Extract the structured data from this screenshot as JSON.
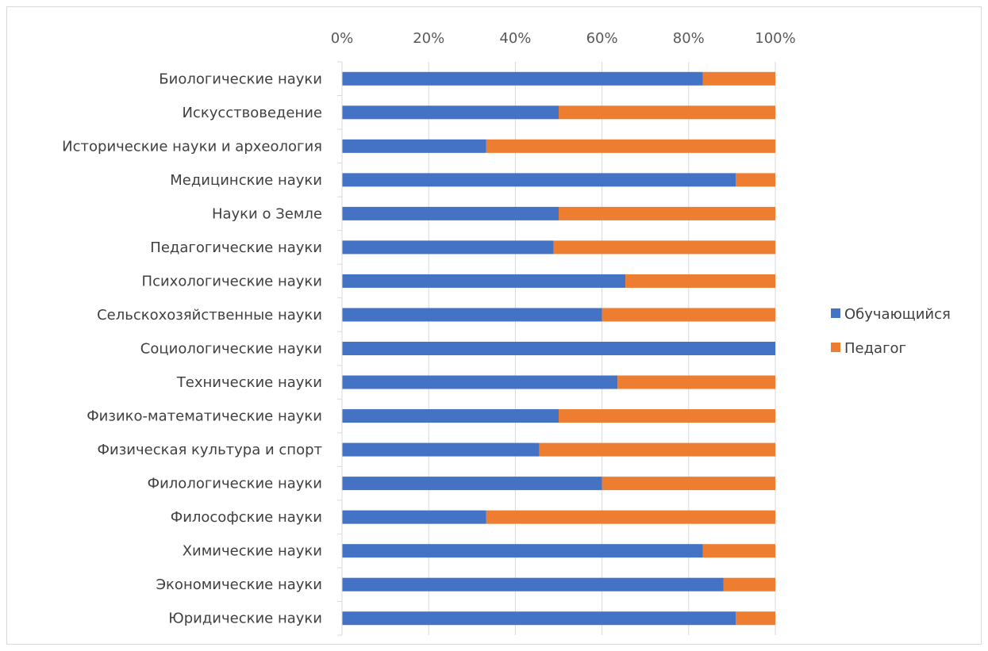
{
  "chart_data": {
    "type": "bar",
    "orientation": "horizontal",
    "stacked": "percent",
    "categories": [
      "Биологические науки",
      "Искусствоведение",
      "Исторические науки и археология",
      "Медицинские науки",
      "Науки о Земле",
      "Педагогические науки",
      "Психологические науки",
      "Сельскохозяйственные науки",
      "Социологические науки",
      "Технические науки",
      "Физико-математические науки",
      "Физическая культура и спорт",
      "Филологические науки",
      "Философские науки",
      "Химические науки",
      "Экономические науки",
      "Юридические науки"
    ],
    "series": [
      {
        "name": "Обучающийся",
        "color": "#4472c4",
        "values": [
          83.3,
          50,
          33.3,
          90.9,
          50,
          48.8,
          65.4,
          60,
          100,
          63.6,
          50,
          45.5,
          60,
          33.3,
          83.3,
          88.0,
          90.9
        ]
      },
      {
        "name": "Педагог",
        "color": "#ed7d31",
        "values": [
          16.7,
          50,
          66.7,
          9.1,
          50,
          51.2,
          34.6,
          40,
          0,
          36.4,
          50,
          54.5,
          40,
          66.7,
          16.7,
          12.0,
          9.1
        ]
      }
    ],
    "xticks": [
      "0%",
      "20%",
      "40%",
      "60%",
      "80%",
      "100%"
    ],
    "xlim": [
      0,
      100
    ],
    "x_axis_position": "top",
    "grid": true,
    "legend_position": "right",
    "title": "",
    "xlabel": "",
    "ylabel": ""
  }
}
